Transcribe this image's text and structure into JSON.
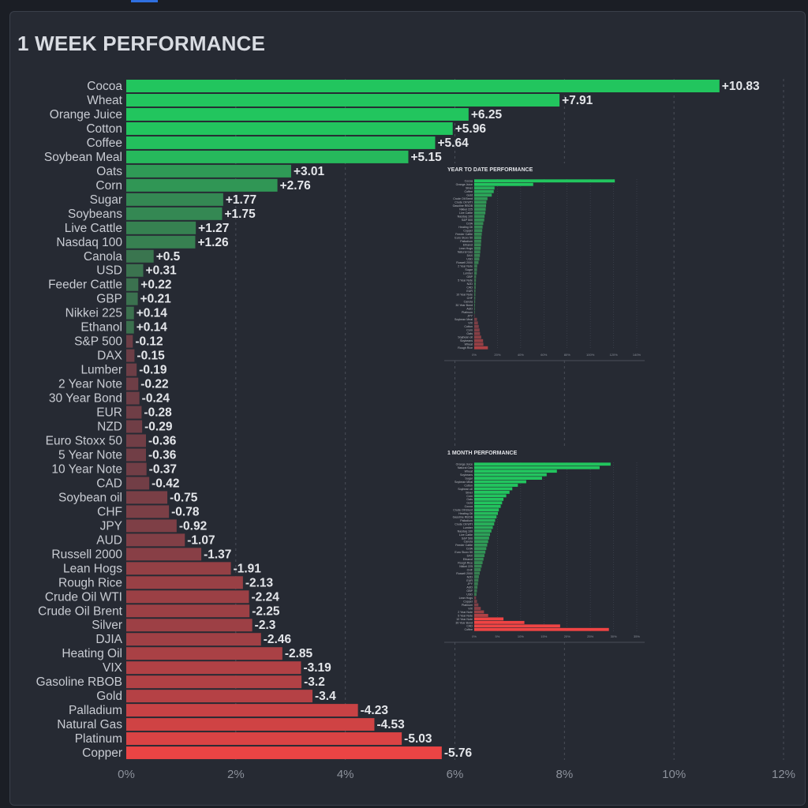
{
  "page": {
    "title": "1 WEEK PERFORMANCE"
  },
  "colors": {
    "positive": "#22c55e",
    "negative": "#ef4444",
    "background": "#262a33"
  },
  "chart_data": [
    {
      "type": "bar",
      "orientation": "horizontal",
      "title": "1 WEEK PERFORMANCE",
      "xlim": [
        0,
        12
      ],
      "x_ticks": [
        "0%",
        "2%",
        "4%",
        "6%",
        "8%",
        "10%",
        "12%"
      ],
      "bar_length": "absolute value",
      "categories": [
        "Cocoa",
        "Wheat",
        "Orange Juice",
        "Cotton",
        "Coffee",
        "Soybean Meal",
        "Oats",
        "Corn",
        "Sugar",
        "Soybeans",
        "Live Cattle",
        "Nasdaq 100",
        "Canola",
        "USD",
        "Feeder Cattle",
        "GBP",
        "Nikkei 225",
        "Ethanol",
        "S&P 500",
        "DAX",
        "Lumber",
        "2 Year Note",
        "30 Year Bond",
        "EUR",
        "NZD",
        "Euro Stoxx 50",
        "5 Year Note",
        "10 Year Note",
        "CAD",
        "Soybean oil",
        "CHF",
        "JPY",
        "AUD",
        "Russell 2000",
        "Lean Hogs",
        "Rough Rice",
        "Crude Oil WTI",
        "Crude Oil Brent",
        "Silver",
        "DJIA",
        "Heating Oil",
        "VIX",
        "Gasoline RBOB",
        "Gold",
        "Palladium",
        "Natural Gas",
        "Platinum",
        "Copper"
      ],
      "values": [
        10.83,
        7.91,
        6.25,
        5.96,
        5.64,
        5.15,
        3.01,
        2.76,
        1.77,
        1.75,
        1.27,
        1.26,
        0.5,
        0.31,
        0.22,
        0.21,
        0.14,
        0.14,
        -0.12,
        -0.15,
        -0.19,
        -0.22,
        -0.24,
        -0.28,
        -0.29,
        -0.36,
        -0.36,
        -0.37,
        -0.42,
        -0.75,
        -0.78,
        -0.92,
        -1.07,
        -1.37,
        -1.91,
        -2.13,
        -2.24,
        -2.25,
        -2.3,
        -2.46,
        -2.85,
        -3.19,
        -3.2,
        -3.4,
        -4.23,
        -4.53,
        -5.03,
        -5.76
      ],
      "value_labels": [
        "+10.83",
        "+7.91",
        "+6.25",
        "+5.96",
        "+5.64",
        "+5.15",
        "+3.01",
        "+2.76",
        "+1.77",
        "+1.75",
        "+1.27",
        "+1.26",
        "+0.5",
        "+0.31",
        "+0.22",
        "+0.21",
        "+0.14",
        "+0.14",
        "-0.12",
        "-0.15",
        "-0.19",
        "-0.22",
        "-0.24",
        "-0.28",
        "-0.29",
        "-0.36",
        "-0.36",
        "-0.37",
        "-0.42",
        "-0.75",
        "-0.78",
        "-0.92",
        "-1.07",
        "-1.37",
        "-1.91",
        "-2.13",
        "-2.24",
        "-2.25",
        "-2.3",
        "-2.46",
        "-2.85",
        "-3.19",
        "-3.2",
        "-3.4",
        "-4.23",
        "-4.53",
        "-5.03",
        "-5.76"
      ]
    },
    {
      "type": "bar",
      "orientation": "horizontal",
      "title": "YEAR TO DATE PERFORMANCE",
      "approximate": true,
      "xlim": [
        0,
        140
      ],
      "x_ticks": [
        "0%",
        "20%",
        "40%",
        "60%",
        "80%",
        "100%",
        "120%",
        "140%"
      ],
      "categories": [
        "Cocoa",
        "Orange Juice",
        "Silver",
        "Coffee",
        "Gold",
        "Crude Oil Brent",
        "Crude Oil WTI",
        "Gasoline RBOB",
        "Nikkei 225",
        "Live Cattle",
        "Nasdaq 100",
        "S&P 500",
        "DJIA",
        "Heating Oil",
        "Copper",
        "Feeder Cattle",
        "Euro Stoxx 50",
        "Palladium",
        "Ethanol",
        "Lean Hogs",
        "Natural Gas",
        "DAX",
        "USD",
        "Russell 2000",
        "2 Year Note",
        "Sugar",
        "Lumber",
        "GBP",
        "5 Year Note",
        "NZD",
        "CAD",
        "EUR",
        "10 Year Note",
        "CHF",
        "Canola",
        "30 Year Bond",
        "AUD",
        "Platinum",
        "JPY",
        "Soybean Meal",
        "VIX",
        "Cotton",
        "Corn",
        "Oats",
        "Soybean oil",
        "Soybeans",
        "Wheat",
        "Rough Rice"
      ],
      "values": [
        121.09,
        50.8,
        17.5,
        16.8,
        15.1,
        11.4,
        10.5,
        10.2,
        9.9,
        9.6,
        8.9,
        8.6,
        7.8,
        7.2,
        6.9,
        6.5,
        6.2,
        6.0,
        5.8,
        5.5,
        5.2,
        4.9,
        4.4,
        3.7,
        2.6,
        2.4,
        2.2,
        1.6,
        1.5,
        1.4,
        1.3,
        1.1,
        1.0,
        0.9,
        0.8,
        0.7,
        0.6,
        0.5,
        0.4,
        2.4,
        3.2,
        3.9,
        4.6,
        5.0,
        6.0,
        7.6,
        7.9,
        11.77
      ]
    },
    {
      "type": "bar",
      "orientation": "horizontal",
      "title": "1 MONTH PERFORMANCE",
      "approximate": true,
      "xlim": [
        0,
        35
      ],
      "x_ticks": [
        "0%",
        "5%",
        "10%",
        "15%",
        "20%",
        "25%",
        "30%",
        "35%"
      ],
      "categories": [
        "Orange Juice",
        "Natural Gas",
        "Wheat",
        "Soybeans",
        "Sugar",
        "Soybean Meal",
        "Cotton",
        "Soybean oil",
        "Silver",
        "Corn",
        "Oats",
        "Gold",
        "Cocoa",
        "Crude Oil Brent",
        "Heating Oil",
        "Gasoline RBOB",
        "Palladium",
        "Crude Oil WTI",
        "Lumber",
        "Nasdaq 100",
        "Live Cattle",
        "S&P 500",
        "Canola",
        "Feeder Cattle",
        "DJIA",
        "Euro Stoxx 50",
        "DAX",
        "Ethanol",
        "Rough Rice",
        "Nikkei 225",
        "CHF",
        "Russell 2000",
        "NZD",
        "EUR",
        "JPY",
        "AUD",
        "GBP",
        "USD",
        "Lean Hogs",
        "Copper",
        "Platinum",
        "VIX",
        "2 Year Note",
        "5 Year Note",
        "10 Year Note",
        "30 Year Bond",
        "CAD",
        "Coffee"
      ],
      "values": [
        29.37,
        27.0,
        17.8,
        15.6,
        14.6,
        11.2,
        9.4,
        8.2,
        7.6,
        6.9,
        6.3,
        6.0,
        5.7,
        5.3,
        5.1,
        4.8,
        4.5,
        4.3,
        4.0,
        3.7,
        3.4,
        3.2,
        3.0,
        2.8,
        2.6,
        2.4,
        2.2,
        2.0,
        1.8,
        1.6,
        1.4,
        1.2,
        1.0,
        0.9,
        0.8,
        0.7,
        0.6,
        0.5,
        0.4,
        0.6,
        0.9,
        1.4,
        2.1,
        3.0,
        6.3,
        10.8,
        18.5,
        29.0
      ]
    }
  ]
}
